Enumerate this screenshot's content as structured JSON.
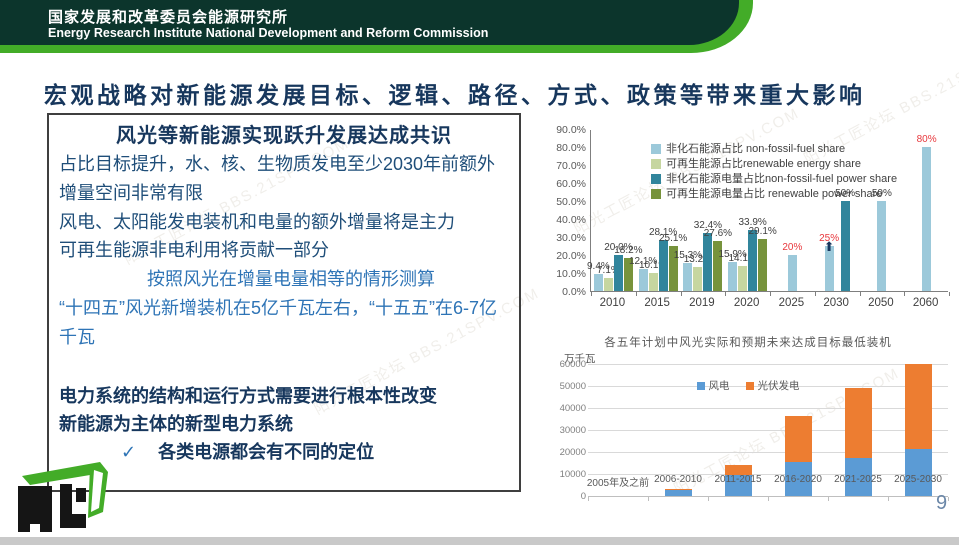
{
  "header": {
    "org_zh": "国家发展和改革委员会能源研究所",
    "org_en": "Energy Research Institute National Development and Reform Commission"
  },
  "slide": {
    "title": "宏观战略对新能源发展目标、逻辑、路径、方式、政策等带来重大影响",
    "page_number": "9"
  },
  "textbox": {
    "heading": "风光等新能源实现跃升发展达成共识",
    "lines_dark": [
      "占比目标提升，水、核、生物质发电至少2030年前额外增量空间非常有限",
      "风电、太阳能发电装机和电量的额外增量将是主力",
      "可再生能源非电利用将贡献一部分"
    ],
    "lines_mid": [
      "按照风光在增量电量相等的情形测算",
      "“十四五”风光新增装机在5亿千瓦左右，“十五五”在6-7亿千瓦"
    ],
    "lines_bold": [
      "电力系统的结构和运行方式需要进行根本性改变",
      "新能源为主体的新型电力系统"
    ],
    "check_mark": "✓",
    "check_text": "各类电源都会有不同的定位"
  },
  "chart_data": [
    {
      "name": "energy-share-chart",
      "type": "bar",
      "categories": [
        "2010",
        "2015",
        "2019",
        "2020",
        "2025",
        "2030",
        "2050",
        "2060"
      ],
      "ylim": [
        0,
        90
      ],
      "yticks": [
        "90.0%",
        "80.0%",
        "70.0%",
        "60.0%",
        "50.0%",
        "40.0%",
        "30.0%",
        "20.0%",
        "10.0%",
        "0.0%"
      ],
      "grid": false,
      "legend_position": "upper-left",
      "series": [
        {
          "name": "非化石能源占比 non-fossil-fuel share",
          "color": "#9cc9da",
          "values": [
            9.4,
            12.1,
            15.3,
            15.9,
            20,
            25,
            50,
            80
          ],
          "labels": [
            "9.4%",
            "12.1%",
            "15.3%",
            "15.9%",
            "20%",
            "25%",
            "50%",
            "80%"
          ],
          "label_colors": [
            "#404040",
            "#404040",
            "#404040",
            "#404040",
            "#e8383d",
            "#e8383d",
            "#404040",
            "#e8383d"
          ]
        },
        {
          "name": "可再生能源占比renewable energy share",
          "color": "#c6d6a0",
          "values": [
            7.1,
            10.1,
            13.2,
            14.1,
            null,
            null,
            null,
            null
          ],
          "labels": [
            "7.1%",
            "10.1%",
            "13.2%",
            "14.1%",
            "",
            "",
            "",
            ""
          ],
          "label_colors": [
            "#404040",
            "#404040",
            "#404040",
            "#404040",
            "",
            "",
            "",
            ""
          ]
        },
        {
          "name": "非化石能源电量占比non-fossil-fuel power share",
          "color": "#31859c",
          "values": [
            20.0,
            28.1,
            32.4,
            33.9,
            null,
            50,
            null,
            null
          ],
          "labels": [
            "20.0%",
            "28.1%",
            "32.4%",
            "33.9%",
            "",
            "50%",
            "",
            ""
          ],
          "label_colors": [
            "#404040",
            "#404040",
            "#404040",
            "#404040",
            "",
            "#404040",
            "",
            ""
          ]
        },
        {
          "name": "可再生能源电量占比 renewable power share",
          "color": "#77933c",
          "values": [
            18.2,
            25.1,
            27.6,
            29.1,
            null,
            null,
            null,
            null
          ],
          "labels": [
            "18.2%",
            "25.1%",
            "27.6%",
            "29.1%",
            "",
            "",
            "",
            ""
          ],
          "label_colors": [
            "#404040",
            "#404040",
            "#404040",
            "#404040",
            "",
            "",
            "",
            ""
          ]
        }
      ],
      "annotation": {
        "category_index": 5,
        "series_index": 0,
        "symbol": "⬆",
        "color": "#17375d"
      }
    },
    {
      "name": "wind-solar-capacity-chart",
      "type": "bar",
      "stacked": true,
      "title": "各五年计划中风光实际和预期未来达成目标最低装机",
      "ylabel": "万千瓦",
      "categories": [
        "2005年及之前",
        "2006-2010",
        "2011-2015",
        "2016-2020",
        "2021-2025",
        "2025-2030"
      ],
      "ylim": [
        0,
        60000
      ],
      "yticks": [
        "60000",
        "50000",
        "40000",
        "30000",
        "20000",
        "10000",
        "0"
      ],
      "grid": true,
      "legend_position": "top-center",
      "series": [
        {
          "name": "风电",
          "color": "#5b9bd5",
          "values": [
            0,
            2950,
            9700,
            15300,
            17200,
            21300
          ]
        },
        {
          "name": "光伏发电",
          "color": "#ed7d31",
          "values": [
            0,
            150,
            4500,
            21000,
            31700,
            38700
          ]
        }
      ]
    }
  ],
  "watermark": {
    "text": "阳光工匠论坛 BBS.21SPV.COM"
  },
  "colors": {
    "header_dark": "#0c352c",
    "header_green": "#43ac28",
    "title_navy": "#17375d",
    "text_dark_blue": "#1f4e79",
    "text_mid_blue": "#2e74b6",
    "red_label": "#e8383d",
    "page_number": "#6b87a8"
  }
}
